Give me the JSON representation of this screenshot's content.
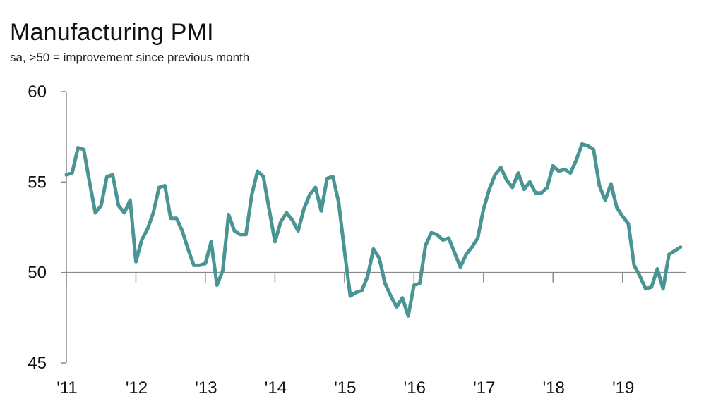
{
  "chart_data": {
    "type": "line",
    "title": "Manufacturing PMI",
    "subtitle": "sa, >50 = improvement since previous month",
    "xlabel": "",
    "ylabel": "",
    "ylim": [
      45,
      60
    ],
    "yticks": [
      45,
      50,
      55,
      60
    ],
    "ytick_labels": [
      "45",
      "50",
      "55",
      "60"
    ],
    "reference_line": 50,
    "xlim": [
      2011.0,
      2019.917
    ],
    "xticks": [
      2011,
      2012,
      2013,
      2014,
      2015,
      2016,
      2017,
      2018,
      2019
    ],
    "xtick_labels": [
      "'11",
      "'12",
      "'13",
      "'14",
      "'15",
      "'16",
      "'17",
      "'18",
      "'19"
    ],
    "series": [
      {
        "name": "Manufacturing PMI",
        "color": "#4a9494",
        "start_year": 2011,
        "start_month": 1,
        "values": [
          55.4,
          55.5,
          56.9,
          56.8,
          55.0,
          53.3,
          53.7,
          55.3,
          55.4,
          53.7,
          53.3,
          54.0,
          50.6,
          51.8,
          52.4,
          53.3,
          54.7,
          54.8,
          53.0,
          53.0,
          52.3,
          51.3,
          50.4,
          50.4,
          50.5,
          51.7,
          49.3,
          50.1,
          53.2,
          52.3,
          52.1,
          52.1,
          54.3,
          55.6,
          55.3,
          53.5,
          51.7,
          52.8,
          53.3,
          52.9,
          52.3,
          53.5,
          54.3,
          54.7,
          53.4,
          55.2,
          55.3,
          53.9,
          51.2,
          48.7,
          48.9,
          49.0,
          49.8,
          51.3,
          50.8,
          49.4,
          48.7,
          48.1,
          48.6,
          47.6,
          49.3,
          49.4,
          51.5,
          52.2,
          52.1,
          51.8,
          51.9,
          51.1,
          50.3,
          51.0,
          51.4,
          51.9,
          53.5,
          54.6,
          55.4,
          55.8,
          55.1,
          54.7,
          55.5,
          54.6,
          55.0,
          54.4,
          54.4,
          54.7,
          55.9,
          55.6,
          55.7,
          55.5,
          56.2,
          57.1,
          57.0,
          56.8,
          54.8,
          54.0,
          54.9,
          53.6,
          53.1,
          52.7,
          50.4,
          49.8,
          49.1,
          49.2,
          50.2,
          49.1,
          51.0,
          51.2,
          51.4
        ]
      }
    ]
  }
}
